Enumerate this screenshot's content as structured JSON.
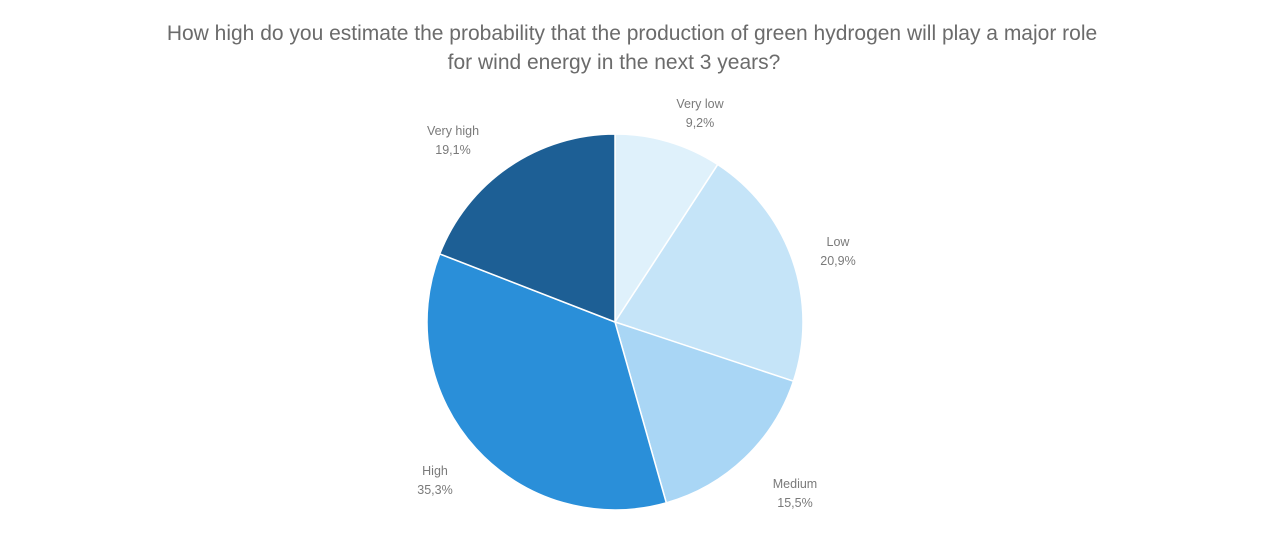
{
  "chart_data": {
    "type": "pie",
    "title_lines": [
      "How high do you estimate the probability that the production  of green hydrogen will play a major role",
      "for wind energy in the next 3 years?"
    ],
    "slices": [
      {
        "label": "Very low",
        "value": 9.2,
        "value_label": "9,2%",
        "color": "#dff1fb"
      },
      {
        "label": "Low",
        "value": 20.9,
        "value_label": "20,9%",
        "color": "#c5e4f8"
      },
      {
        "label": "Medium",
        "value": 15.5,
        "value_label": "15,5%",
        "color": "#a9d6f5"
      },
      {
        "label": "High",
        "value": 35.3,
        "value_label": "35,3%",
        "color": "#2a8fd9"
      },
      {
        "label": "Very high",
        "value": 19.1,
        "value_label": "19,1%",
        "color": "#1d5f95"
      }
    ],
    "start_angle": "12 o'clock",
    "direction": "clockwise",
    "legend": "none"
  }
}
